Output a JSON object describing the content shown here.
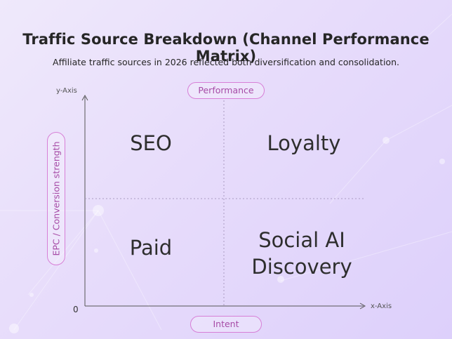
{
  "header": {
    "title": "Traffic Source Breakdown (Channel Performance Matrix)",
    "subtitle": "Affiliate traffic sources in 2026 reflected both diversification and consolidation."
  },
  "axes": {
    "y_axis_label": "y-Axis",
    "x_axis_label": "x-Axis",
    "origin_label": "0",
    "top_pill": "Performance",
    "bottom_pill": "Intent",
    "left_pill": "EPC / Conversion strength"
  },
  "quadrants": {
    "top_left": "SEO",
    "top_right": "Loyalty",
    "bottom_left": "Paid",
    "bottom_right_line1": "Social AI",
    "bottom_right_line2": "Discovery"
  },
  "colors": {
    "accent": "#d77fd7",
    "accent_text": "#a64ba6",
    "background": "#e7dcfb"
  }
}
